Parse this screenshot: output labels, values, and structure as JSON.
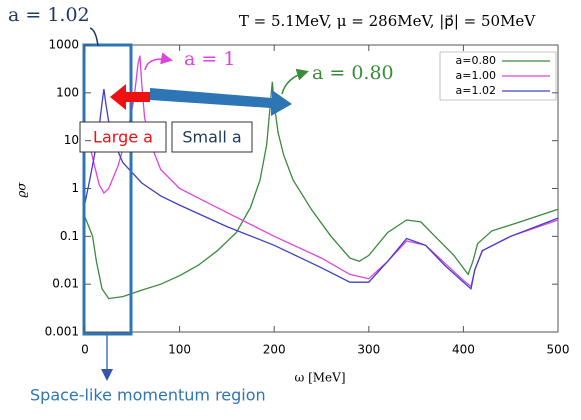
{
  "chart_data": {
    "type": "line",
    "title": "T = 5.1MeV, μ = 286MeV, |p⃗| = 50MeV",
    "xlabel": "ω [MeV]",
    "ylabel": "ϱσ",
    "xlim": [
      0,
      500
    ],
    "xticks": [
      0,
      100,
      200,
      300,
      400,
      500
    ],
    "ylim": [
      0.001,
      1000
    ],
    "yticks": [
      0.001,
      0.01,
      0.1,
      1,
      10,
      100,
      1000
    ],
    "log_y": true,
    "legend": "upper right",
    "annotations": [
      "a = 1.02",
      "a = 1",
      "a = 0.80",
      "Large a",
      "Small a",
      "Space-like momentum region"
    ],
    "series": [
      {
        "name": "a=0.80",
        "color": "#3a8a3a",
        "x": [
          0,
          3,
          8,
          12,
          18,
          25,
          40,
          60,
          80,
          100,
          120,
          140,
          160,
          175,
          185,
          192,
          196,
          198,
          200,
          204,
          210,
          220,
          240,
          260,
          280,
          290,
          300,
          320,
          340,
          355,
          370,
          390,
          405,
          410,
          415,
          430,
          460,
          500
        ],
        "values": [
          0.25,
          0.18,
          0.1,
          0.03,
          0.008,
          0.005,
          0.0055,
          0.0075,
          0.01,
          0.015,
          0.025,
          0.05,
          0.12,
          0.4,
          1.5,
          8,
          60,
          170,
          60,
          15,
          5,
          1.5,
          0.35,
          0.1,
          0.035,
          0.03,
          0.04,
          0.12,
          0.22,
          0.2,
          0.1,
          0.04,
          0.016,
          0.03,
          0.07,
          0.13,
          0.2,
          0.37
        ]
      },
      {
        "name": "a=1.00",
        "color": "#dd44dd",
        "x": [
          0,
          5,
          10,
          15,
          20,
          25,
          35,
          45,
          52,
          56,
          58,
          60,
          63,
          70,
          80,
          100,
          130,
          160,
          200,
          250,
          280,
          300,
          320,
          340,
          360,
          380,
          400,
          408,
          412,
          420,
          450,
          500
        ],
        "values": [
          20,
          8,
          3,
          1.2,
          0.8,
          1,
          3,
          15,
          80,
          400,
          600,
          150,
          30,
          8,
          2.5,
          1,
          0.5,
          0.25,
          0.1,
          0.035,
          0.016,
          0.013,
          0.03,
          0.08,
          0.065,
          0.028,
          0.012,
          0.009,
          0.02,
          0.05,
          0.1,
          0.22
        ]
      },
      {
        "name": "a=1.02",
        "color": "#4040c8",
        "x": [
          0,
          5,
          10,
          15,
          18,
          20,
          22,
          25,
          30,
          40,
          60,
          80,
          100,
          150,
          200,
          250,
          280,
          300,
          320,
          340,
          360,
          380,
          400,
          408,
          412,
          420,
          450,
          500
        ],
        "values": [
          0.5,
          1.5,
          5,
          20,
          60,
          120,
          60,
          25,
          10,
          3.5,
          1.3,
          0.7,
          0.45,
          0.16,
          0.065,
          0.022,
          0.011,
          0.011,
          0.03,
          0.09,
          0.065,
          0.025,
          0.011,
          0.008,
          0.02,
          0.05,
          0.1,
          0.24
        ]
      }
    ]
  }
}
